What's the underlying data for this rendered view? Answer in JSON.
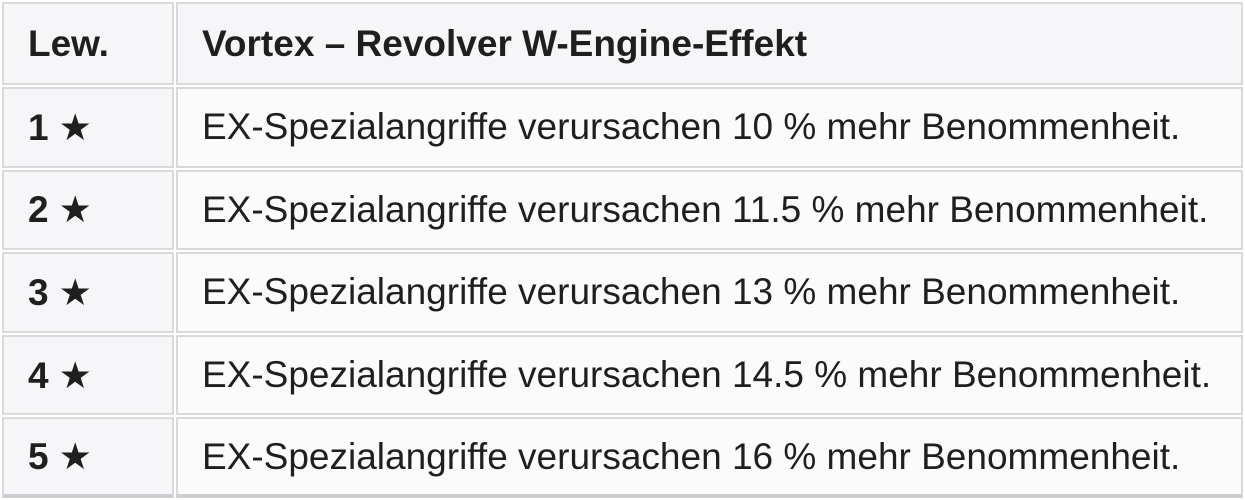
{
  "table": {
    "header": {
      "level_label": "Lew.",
      "effect_label": "Vortex – Revolver W-Engine-Effekt"
    },
    "rows": [
      {
        "level": "1",
        "star": "★",
        "effect": "EX-Spezialangriffe verursachen 10 % mehr Benommenheit."
      },
      {
        "level": "2",
        "star": "★",
        "effect": "EX-Spezialangriffe verursachen 11.5 % mehr Benommenheit."
      },
      {
        "level": "3",
        "star": "★",
        "effect": "EX-Spezialangriffe verursachen 13 % mehr Benommenheit."
      },
      {
        "level": "4",
        "star": "★",
        "effect": "EX-Spezialangriffe verursachen 14.5 % mehr Benommenheit."
      },
      {
        "level": "5",
        "star": "★",
        "effect": "EX-Spezialangriffe verursachen 16 % mehr Benommenheit."
      }
    ],
    "colors": {
      "header_cell_bg": "#f6f6f8",
      "body_cell_bg": "#fbfbfc",
      "border": "#d9d9dc",
      "text": "#1f1f20"
    }
  }
}
